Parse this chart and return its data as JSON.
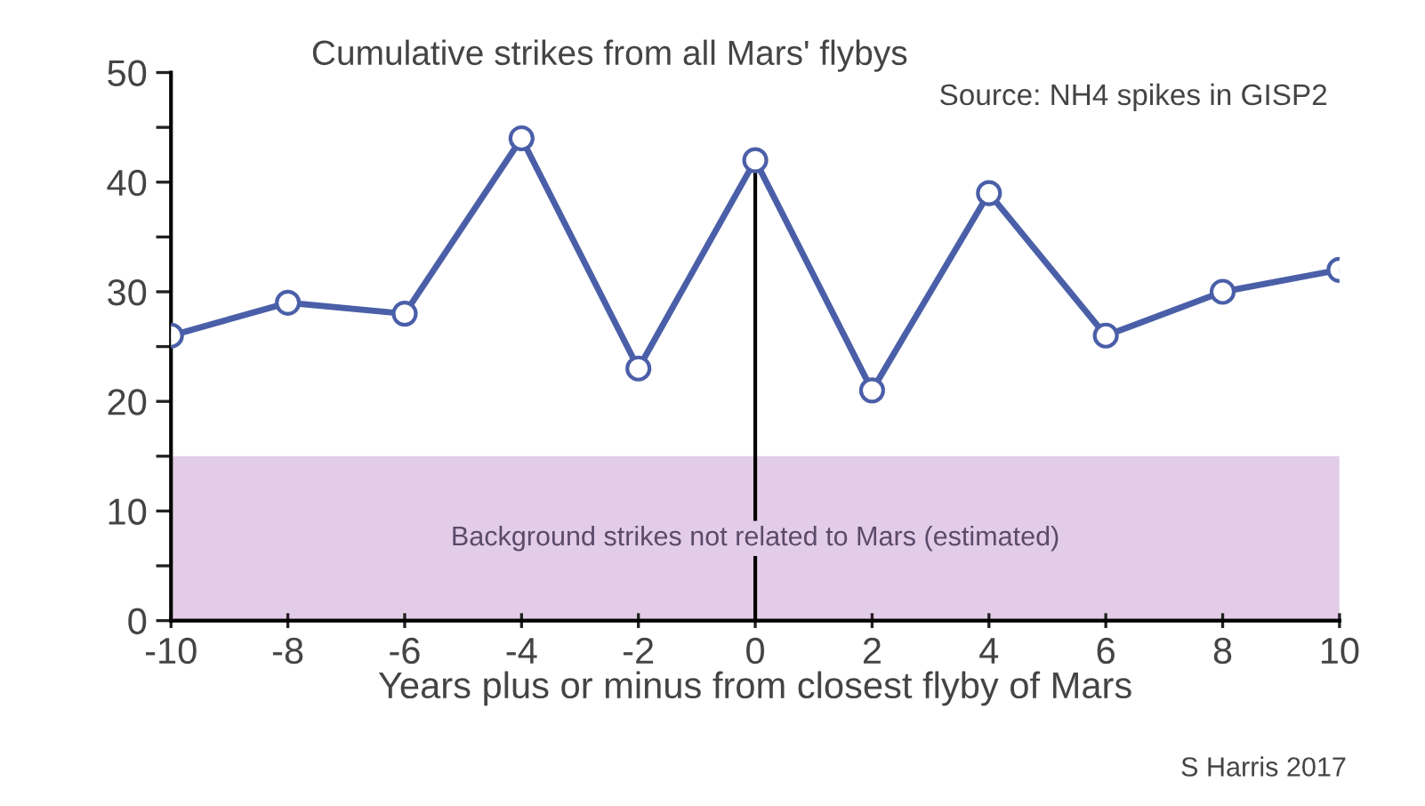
{
  "chart_data": {
    "type": "line",
    "title": "Cumulative strikes from all Mars' flybys",
    "xlabel": "Years plus or minus from closest flyby of Mars",
    "annotations": [
      "Source: NH4 spikes in GISP2",
      "S Harris 2017"
    ],
    "x": [
      -10,
      -8,
      -6,
      -4,
      -2,
      0,
      2,
      4,
      6,
      8,
      10
    ],
    "series": [
      {
        "color": "#4a5fa8",
        "values": [
          26,
          29,
          28,
          44,
          23,
          42,
          21,
          39,
          26,
          30,
          32
        ]
      }
    ],
    "xlim": [
      -10,
      10
    ],
    "xticks": [
      -10,
      -8,
      -6,
      -4,
      -2,
      0,
      2,
      4,
      6,
      8,
      10
    ],
    "ylim": [
      0,
      50
    ],
    "yticks": [
      0,
      {
        "value": 5,
        "label": null
      },
      10,
      {
        "value": 15,
        "label": null
      },
      20,
      {
        "value": 25,
        "label": null
      },
      30,
      {
        "value": 35,
        "label": null
      },
      40,
      {
        "value": 45,
        "label": null
      },
      50
    ],
    "bands": [
      {
        "axis": "y",
        "from": 0,
        "to": 15,
        "label": "Background strikes not related to Mars (estimated)",
        "color": "#e3cce8"
      }
    ],
    "ref_lines": [
      {
        "axis": "x",
        "value": 0,
        "color": "#000000"
      }
    ],
    "marker": "circle",
    "line_style": "solid",
    "grid": false,
    "legend": false
  }
}
